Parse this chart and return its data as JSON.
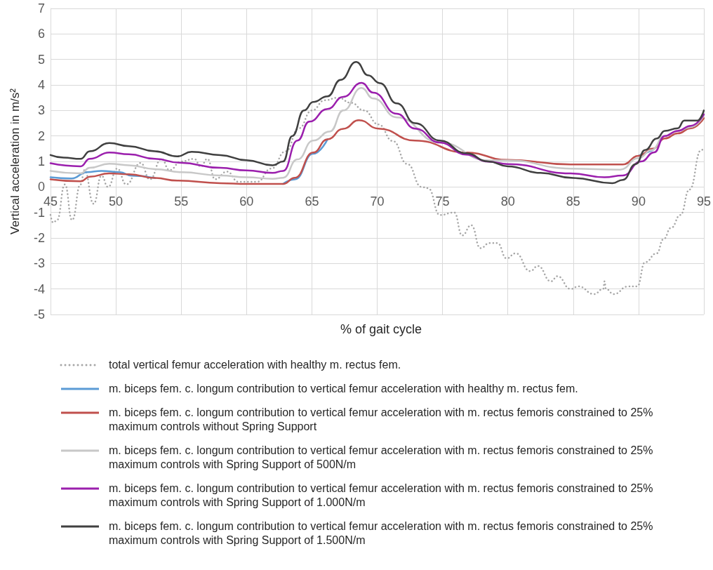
{
  "chart_data": {
    "type": "line",
    "xlabel": "% of gait cycle",
    "ylabel": "Vertical acceleration in m/s²",
    "xlim": [
      45,
      95
    ],
    "xticks": [
      45,
      50,
      55,
      60,
      65,
      70,
      75,
      80,
      85,
      90,
      95
    ],
    "ylim": [
      -5,
      7
    ],
    "yticks": [
      -5,
      -4,
      -3,
      -2,
      -1,
      0,
      1,
      2,
      3,
      4,
      5,
      6,
      7
    ],
    "grid": true,
    "legend": "bottom",
    "marker": "none",
    "line_style": "solid",
    "series": [
      {
        "name": "total vertical femur acceleration with healthy m. rectus fem.",
        "color": "#a6a6a6",
        "line_style": "dotted",
        "x": [
          45,
          45.2,
          45.5,
          46.1,
          46.65,
          47.3,
          47.6,
          48.3,
          48.9,
          49.4,
          50.1,
          50.8,
          51.9,
          52.6,
          53.5,
          54.1,
          55,
          56,
          56.5,
          57,
          57.6,
          58.5,
          59.4,
          60.8,
          61.9,
          63,
          64,
          65,
          66,
          67,
          68,
          69,
          70.1,
          71.2,
          72.3,
          73.4,
          73.9,
          74.8,
          75.9,
          76.5,
          77.2,
          77.9,
          78.6,
          79.2,
          79.9,
          80.6,
          81.7,
          82.3,
          83.3,
          83.8,
          84.8,
          85.4,
          86.6,
          87.3,
          87.4,
          87.5,
          88.1,
          89.2,
          89.9,
          90.5,
          91.4,
          91.9,
          92.5,
          93.2,
          93.9,
          94.8,
          95
        ],
        "values": [
          -1.1,
          -1.4,
          -1.3,
          0.1,
          -1.3,
          0.1,
          0.66,
          -0.66,
          0.44,
          0,
          0.72,
          0.1,
          0.94,
          0.3,
          1.1,
          0.66,
          1,
          1.1,
          0.8,
          1.1,
          0.3,
          0.6,
          0.2,
          0.2,
          0.72,
          1.4,
          2.3,
          3,
          3.4,
          3.5,
          3.3,
          3,
          2.45,
          1.8,
          0.9,
          0,
          -0.05,
          -1.1,
          -1,
          -1.9,
          -1.5,
          -2.4,
          -2.2,
          -2.2,
          -2.8,
          -2.6,
          -3.3,
          -3.1,
          -3.7,
          -3.5,
          -4,
          -3.9,
          -4.2,
          -4,
          -3.7,
          -4,
          -4.2,
          -3.9,
          -3.9,
          -2.95,
          -2.6,
          -2.05,
          -1.6,
          -1.1,
          -0.1,
          1.45,
          1.5
        ]
      },
      {
        "name": "m. biceps fem. c. longum contribution to vertical femur acceleration with healthy m. rectus fem.",
        "color": "#5b9bd5",
        "x": [
          45,
          46.6,
          47.8,
          48.9,
          50.3,
          51.2,
          53,
          54.7,
          58,
          60,
          62,
          62.8,
          63.7,
          65.1,
          66.2,
          67.4,
          68.6,
          70.1,
          72.9,
          76.8,
          80,
          84.8,
          88.8,
          90,
          91.1
        ],
        "values": [
          0.38,
          0.33,
          0.58,
          0.63,
          0.58,
          0.44,
          0.35,
          null,
          null,
          null,
          null,
          0.12,
          0.3,
          1.3,
          1.87,
          null,
          null,
          null,
          null,
          null,
          null,
          null,
          null,
          1.22,
          1.45
        ]
      },
      {
        "name": "m. biceps fem. c. longum contribution to vertical femur acceleration with m. rectus femoris constrained to 25% maximum controls without Spring Support",
        "color": "#c0504d",
        "x": [
          45,
          47.3,
          48,
          49.5,
          51,
          53,
          54.7,
          58,
          60,
          62,
          62.8,
          63.7,
          65.1,
          66.2,
          67.4,
          68.6,
          70.1,
          72.9,
          76.8,
          80,
          84.8,
          88.8,
          90,
          91.1,
          92,
          93,
          94,
          95
        ],
        "values": [
          0.3,
          0.22,
          0.4,
          0.53,
          0.5,
          0.35,
          0.25,
          0.15,
          0.12,
          0.12,
          0.12,
          0.36,
          1.35,
          1.87,
          2.28,
          2.62,
          2.29,
          1.82,
          1.35,
          1.06,
          0.88,
          0.88,
          1.22,
          1.5,
          1.9,
          2.1,
          2.3,
          2.7
        ]
      },
      {
        "name": "m. biceps fem. c. longum contribution to vertical femur acceleration with m. rectus femoris constrained to 25% maximum controls with Spring Support of 500N/m",
        "color": "#c8c8c8",
        "x": [
          45,
          47.3,
          48,
          49.5,
          51,
          53,
          55,
          58,
          60,
          62,
          62.8,
          63.9,
          65.1,
          66.4,
          67.4,
          68.8,
          69.7,
          71.5,
          74.8,
          78.5,
          80,
          84.8,
          88.6,
          90,
          91,
          92,
          93,
          94,
          95
        ],
        "values": [
          0.63,
          0.53,
          0.75,
          0.91,
          0.85,
          0.7,
          0.58,
          0.45,
          0.38,
          0.32,
          0.36,
          1.08,
          1.82,
          2.18,
          3,
          3.88,
          3.47,
          2.73,
          1.74,
          1.04,
          1.04,
          0.72,
          0.68,
          1.13,
          1.45,
          2,
          2.2,
          2.35,
          2.8
        ]
      },
      {
        "name": "m. biceps fem. c. longum contribution to vertical femur acceleration with m. rectus femoris constrained to 25% maximum controls with Spring Support of 1.000N/m",
        "color": "#9b1fad",
        "x": [
          45,
          47.3,
          48,
          49.5,
          51,
          53,
          54.9,
          58,
          60,
          62,
          62.8,
          63.9,
          64.8,
          66.2,
          67.4,
          68.8,
          69.7,
          71.5,
          72.9,
          74.8,
          76.8,
          78.5,
          80,
          84.8,
          87.4,
          88.8,
          90.2,
          91.2,
          92,
          93,
          94,
          95
        ],
        "values": [
          0.93,
          0.81,
          1.1,
          1.35,
          1.28,
          1.1,
          0.95,
          0.75,
          0.65,
          0.55,
          0.63,
          1.82,
          2.56,
          3.06,
          3.53,
          4.08,
          3.7,
          2.87,
          2.29,
          1.74,
          1.27,
          0.99,
          0.9,
          0.53,
          0.38,
          0.45,
          1,
          1.36,
          2,
          2.2,
          2.4,
          2.85
        ]
      },
      {
        "name": "m. biceps fem. c. longum contribution to vertical femur acceleration with m. rectus femoris constrained to 25% maximum controls with Spring Support of 1.500N/m",
        "color": "#404040",
        "x": [
          45,
          46,
          47.3,
          48,
          49.5,
          51,
          53,
          54.7,
          55.8,
          58,
          60,
          62,
          62.8,
          63.5,
          64.4,
          65.1,
          66.2,
          67.2,
          68.4,
          69.3,
          70.2,
          71.5,
          72.9,
          74.8,
          76.8,
          78.5,
          80,
          82.5,
          85,
          88,
          88.8,
          89.8,
          90.5,
          91.4,
          92,
          93,
          93.5,
          94.5,
          95
        ],
        "values": [
          1.25,
          1.15,
          1.1,
          1.4,
          1.72,
          1.6,
          1.4,
          1.2,
          1.38,
          1.25,
          1.05,
          0.85,
          1,
          2,
          3,
          3.33,
          3.55,
          4.2,
          4.9,
          4.38,
          4.07,
          3.28,
          2.5,
          1.82,
          1.32,
          1,
          0.81,
          0.55,
          0.35,
          0.15,
          0.28,
          0.9,
          1.45,
          1.9,
          2.2,
          2.3,
          2.6,
          2.6,
          3
        ]
      }
    ]
  }
}
